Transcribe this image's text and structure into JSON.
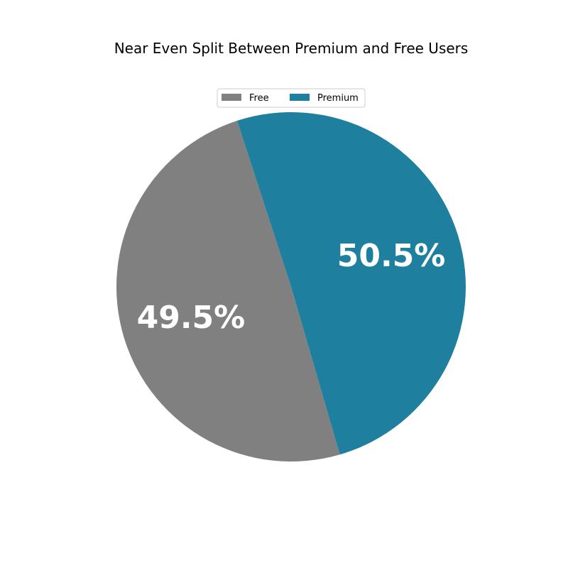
{
  "chart_data": {
    "type": "pie",
    "title": "Near Even Split Between Premium and Free Users",
    "slices": [
      {
        "label": "Free",
        "value": 49.5,
        "display": "49.5%",
        "color": "#808080"
      },
      {
        "label": "Premium",
        "value": 50.5,
        "display": "50.5%",
        "color": "#1f7f9e"
      }
    ],
    "legend": {
      "position": "top-center",
      "entries": [
        "Free",
        "Premium"
      ]
    }
  }
}
